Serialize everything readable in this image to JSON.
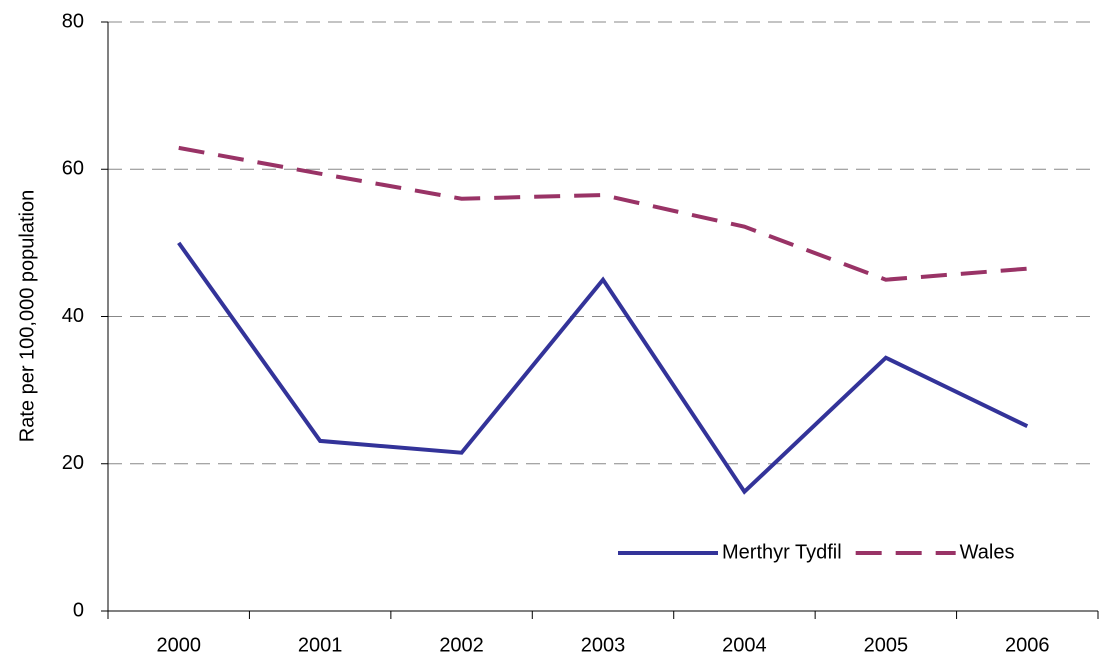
{
  "chart_data": {
    "type": "line",
    "y_label": "Rate per 100,000 population",
    "categories": [
      "2000",
      "2001",
      "2002",
      "2003",
      "2004",
      "2005",
      "2006"
    ],
    "series": [
      {
        "name": "Merthyr Tydfil",
        "color": "#333399",
        "dash": "solid",
        "values": [
          50.0,
          23.1,
          21.5,
          45.0,
          16.2,
          34.4,
          25.1
        ]
      },
      {
        "name": "Wales",
        "color": "#993366",
        "dash": "dashed",
        "values": [
          62.9,
          59.4,
          56.0,
          56.5,
          52.2,
          45.0,
          46.5
        ]
      }
    ],
    "ylim": [
      0,
      80
    ],
    "yticks": [
      0,
      20,
      40,
      60,
      80
    ],
    "grid": true,
    "legend": "lower right"
  }
}
